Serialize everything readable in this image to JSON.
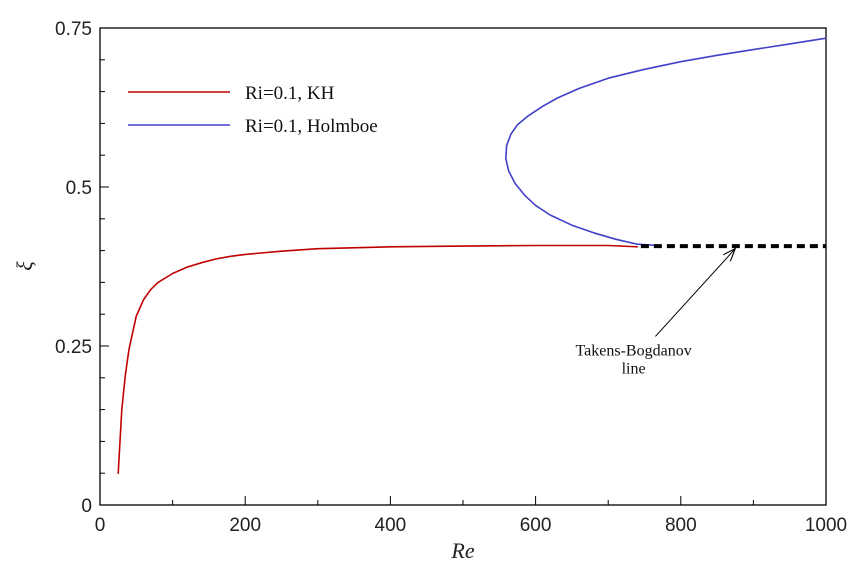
{
  "chart_data": {
    "type": "line",
    "xlabel": "Re",
    "ylabel": "ξ",
    "xlim": [
      0,
      1000
    ],
    "ylim": [
      0,
      0.75
    ],
    "x_ticks": [
      0,
      200,
      400,
      600,
      800,
      1000
    ],
    "y_ticks": [
      0,
      0.25,
      0.5,
      0.75
    ],
    "y_tick_labels": [
      "0",
      "0.25",
      "0.5",
      "0.75"
    ],
    "legend_position": "top-left",
    "grid": false,
    "series": [
      {
        "name": "Ri=0.1, KH",
        "color": "#c00000",
        "x": [
          25,
          30,
          35,
          40,
          50,
          60,
          70,
          80,
          100,
          120,
          140,
          160,
          180,
          200,
          250,
          300,
          400,
          500,
          600,
          700,
          740
        ],
        "y": [
          0.05,
          0.15,
          0.205,
          0.245,
          0.297,
          0.323,
          0.339,
          0.35,
          0.364,
          0.374,
          0.381,
          0.387,
          0.391,
          0.394,
          0.399,
          0.403,
          0.406,
          0.407,
          0.408,
          0.408,
          0.406
        ]
      },
      {
        "name": "Ri=0.1, Holmboe",
        "color": "#4040c8",
        "x": [
          770,
          740,
          710,
          680,
          650,
          620,
          600,
          585,
          572,
          563,
          559,
          560,
          566,
          575,
          590,
          610,
          630,
          660,
          700,
          750,
          800,
          850,
          900,
          950,
          1000
        ],
        "y": [
          0.408,
          0.41,
          0.418,
          0.428,
          0.44,
          0.456,
          0.471,
          0.487,
          0.505,
          0.525,
          0.545,
          0.565,
          0.583,
          0.598,
          0.612,
          0.627,
          0.64,
          0.655,
          0.671,
          0.685,
          0.697,
          0.707,
          0.716,
          0.725,
          0.734
        ]
      }
    ],
    "dashed_line": {
      "x": [
        745,
        1000
      ],
      "y": [
        0.407,
        0.407
      ],
      "color": "#000000"
    },
    "annotation": {
      "lines": [
        "Takens-Bogdanov",
        "line"
      ],
      "text_at": [
        735,
        0.235
      ],
      "arrow_from": [
        765,
        0.265
      ],
      "arrow_to": [
        875,
        0.403
      ]
    }
  }
}
